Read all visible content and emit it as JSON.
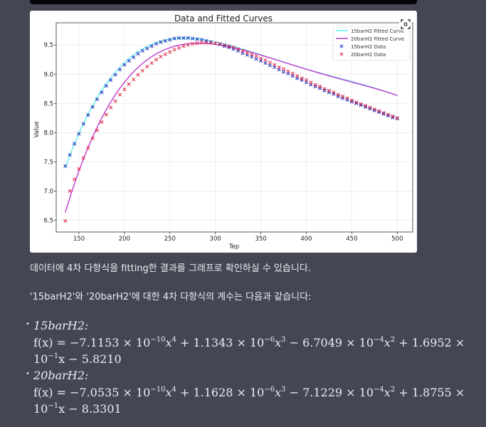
{
  "chart_data": {
    "type": "line",
    "title": "Data and Fitted Curves",
    "xlabel": "Tep",
    "ylabel": "Value",
    "xlim": [
      125,
      517
    ],
    "ylim": [
      6.3,
      9.88
    ],
    "xticks": [
      150,
      200,
      250,
      300,
      350,
      400,
      450,
      500
    ],
    "yticks": [
      6.5,
      7.0,
      7.5,
      8.0,
      8.5,
      9.0,
      9.5
    ],
    "grid": true,
    "legend_position": "top-right",
    "colors": {
      "fit15": "#5ff0f0",
      "fit20": "#c03ad0",
      "data15": "#1f2fc0",
      "data20": "#e03050"
    },
    "legend": [
      {
        "label": "15barH2 Fitted Curve",
        "kind": "line",
        "color": "#5ff0f0"
      },
      {
        "label": "20barH2 Fitted Curve",
        "kind": "line",
        "color": "#c03ad0"
      },
      {
        "label": "15barH2 Data",
        "kind": "marker",
        "color": "#1f2fc0"
      },
      {
        "label": "20barH2 Data",
        "kind": "marker",
        "color": "#e03050"
      }
    ],
    "series": [
      {
        "name": "15barH2 Fitted Curve",
        "kind": "fit",
        "coefficients": [
          -7.1153e-10,
          1.1343e-06,
          -0.00067049,
          0.16952,
          -5.821
        ],
        "x_range": [
          135,
          500
        ]
      },
      {
        "name": "20barH2 Fitted Curve",
        "kind": "fit",
        "coefficients": [
          -7.0535e-10,
          1.1628e-06,
          -0.00071229,
          0.18755,
          -8.3301
        ],
        "x_range": [
          135,
          500
        ]
      },
      {
        "name": "15barH2 Data",
        "kind": "scatter",
        "x": [
          135,
          140,
          145,
          150,
          155,
          160,
          165,
          170,
          175,
          180,
          185,
          190,
          195,
          200,
          205,
          210,
          215,
          220,
          225,
          230,
          235,
          240,
          245,
          250,
          255,
          260,
          265,
          270,
          275,
          280,
          285,
          290,
          295,
          300,
          305,
          310,
          315,
          320,
          325,
          330,
          335,
          340,
          345,
          350,
          355,
          360,
          365,
          370,
          375,
          380,
          385,
          390,
          395,
          400,
          405,
          410,
          415,
          420,
          425,
          430,
          435,
          440,
          445,
          450,
          455,
          460,
          465,
          470,
          475,
          480,
          485,
          490,
          495,
          500
        ],
        "y": [
          7.43,
          7.62,
          7.81,
          7.98,
          8.15,
          8.3,
          8.44,
          8.57,
          8.69,
          8.8,
          8.9,
          8.99,
          9.08,
          9.16,
          9.23,
          9.29,
          9.35,
          9.4,
          9.44,
          9.48,
          9.52,
          9.55,
          9.57,
          9.59,
          9.61,
          9.62,
          9.62,
          9.62,
          9.61,
          9.6,
          9.59,
          9.57,
          9.55,
          9.53,
          9.51,
          9.48,
          9.46,
          9.43,
          9.4,
          9.36,
          9.33,
          9.3,
          9.26,
          9.23,
          9.19,
          9.15,
          9.12,
          9.08,
          9.04,
          9.01,
          8.97,
          8.93,
          8.9,
          8.86,
          8.82,
          8.79,
          8.76,
          8.72,
          8.69,
          8.66,
          8.62,
          8.59,
          8.56,
          8.53,
          8.5,
          8.47,
          8.44,
          8.41,
          8.38,
          8.35,
          8.32,
          8.29,
          8.26,
          8.24
        ]
      },
      {
        "name": "20barH2 Data",
        "kind": "scatter",
        "x": [
          135,
          140,
          145,
          150,
          155,
          160,
          165,
          170,
          175,
          180,
          185,
          190,
          195,
          200,
          205,
          210,
          215,
          220,
          225,
          230,
          235,
          240,
          245,
          250,
          255,
          260,
          265,
          270,
          275,
          280,
          285,
          290,
          295,
          300,
          305,
          310,
          315,
          320,
          325,
          330,
          335,
          340,
          345,
          350,
          355,
          360,
          365,
          370,
          375,
          380,
          385,
          390,
          395,
          400,
          405,
          410,
          415,
          420,
          425,
          430,
          435,
          440,
          445,
          450,
          455,
          460,
          465,
          470,
          475,
          480,
          485,
          490,
          495,
          500
        ],
        "y": [
          6.49,
          7.0,
          7.2,
          7.38,
          7.57,
          7.74,
          7.9,
          8.04,
          8.18,
          8.31,
          8.43,
          8.54,
          8.65,
          8.74,
          8.83,
          8.91,
          8.99,
          9.06,
          9.13,
          9.19,
          9.25,
          9.3,
          9.34,
          9.38,
          9.42,
          9.45,
          9.48,
          9.5,
          9.52,
          9.53,
          9.54,
          9.54,
          9.54,
          9.53,
          9.52,
          9.5,
          9.48,
          9.46,
          9.43,
          9.4,
          9.37,
          9.34,
          9.31,
          9.27,
          9.24,
          9.2,
          9.16,
          9.12,
          9.09,
          9.05,
          9.01,
          8.97,
          8.93,
          8.9,
          8.86,
          8.82,
          8.79,
          8.75,
          8.72,
          8.69,
          8.65,
          8.62,
          8.59,
          8.55,
          8.52,
          8.49,
          8.46,
          8.43,
          8.4,
          8.37,
          8.34,
          8.31,
          8.28,
          8.25
        ]
      }
    ]
  },
  "text": {
    "intro": "데이터에 4차 다항식을 fitting한 결과를 그래프로 확인하실 수 있습니다.",
    "coef_intro": "'15barH2'와 '20barH2'에 대한 4차 다항식의 계수는 다음과 같습니다:",
    "bullet": "•"
  },
  "eq15": {
    "label": "15barH2:",
    "lhs": "f(x) = −7.1153 × 10",
    "e1": "−10",
    "t1": "x",
    "p1": "4",
    "m2": " + 1.1343 × 10",
    "e2": "−6",
    "t2": "x",
    "p2": "3",
    "m3": " − 6.7049 × 10",
    "e3": "−4",
    "t3": "x",
    "p3": "2",
    "m4": " + 1.6952 ×",
    "l2a": "10",
    "e4": "−1",
    "l2b": "x − 5.8210"
  },
  "eq20": {
    "label": "20barH2:",
    "lhs": "f(x) = −7.0535 × 10",
    "e1": "−10",
    "t1": "x",
    "p1": "4",
    "m2": " + 1.1628 × 10",
    "e2": "−6",
    "t2": "x",
    "p2": "3",
    "m3": " − 7.1229 × 10",
    "e3": "−4",
    "t3": "x",
    "p3": "2",
    "m4": " + 1.8755 ×",
    "l2a": "10",
    "e4": "−1",
    "l2b": "x − 8.3301"
  }
}
